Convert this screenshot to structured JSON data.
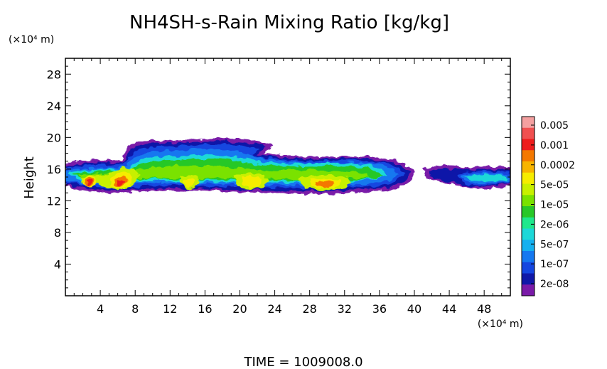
{
  "chart_data": {
    "type": "heatmap",
    "title": "NH4SH-s-Rain Mixing Ratio [kg/kg]",
    "ylabel": "Height",
    "y_unit": "(×10⁴ m)",
    "x_unit": "(×10⁴ m)",
    "time_label": "TIME  =  1009008.0",
    "xlim": [
      0,
      51
    ],
    "ylim": [
      0,
      30
    ],
    "x_ticks": [
      4,
      8,
      12,
      16,
      20,
      24,
      28,
      32,
      36,
      40,
      44,
      48
    ],
    "y_ticks": [
      4,
      8,
      12,
      16,
      20,
      24,
      28
    ],
    "colorbar": {
      "labels": [
        "0.005",
        "0.001",
        "0.0002",
        "5e-05",
        "1e-05",
        "2e-06",
        "5e-07",
        "1e-07",
        "2e-08"
      ],
      "colors": [
        "#f4a0a0",
        "#f05050",
        "#ee1c1c",
        "#f47800",
        "#f8b400",
        "#f6ec00",
        "#c8f000",
        "#7ae200",
        "#28c828",
        "#1ee88c",
        "#1cd8d8",
        "#14b0f0",
        "#1478f0",
        "#1446e0",
        "#1018a8",
        "#7a1aa8"
      ]
    },
    "cloud_band": {
      "main_layer_height_range": [
        13,
        17
      ],
      "upper_plume_top": 20,
      "x_extent": [
        0,
        51
      ],
      "max_value_locations": [
        {
          "x": 3,
          "y": 14.5,
          "level": "0.001"
        },
        {
          "x": 7,
          "y": 15,
          "level": "0.001"
        },
        {
          "x": 21.5,
          "y": 14.5,
          "level": "0.0002"
        },
        {
          "x": 29.5,
          "y": 14.2,
          "level": "0.001"
        }
      ]
    }
  }
}
